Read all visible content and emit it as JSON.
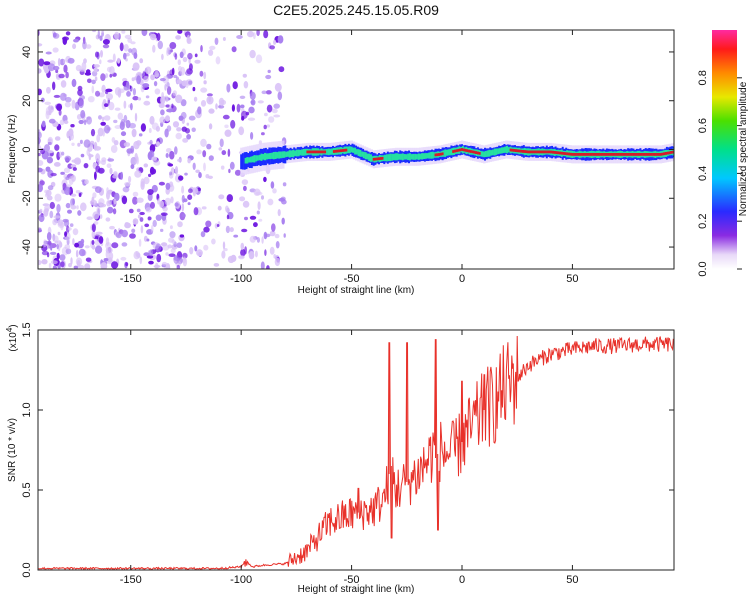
{
  "title": "C2E5.2025.245.15.05.R09",
  "colors": {
    "snr_line": "#e8312a",
    "ridge_core": "#d8192a",
    "ridge_mid": "#26e0a0",
    "ridge_outer": "#1a2bff",
    "noise_dark": "#6a12e0",
    "noise_light": "#d9c2f7"
  },
  "chart_data": [
    {
      "type": "heatmap",
      "name": "spectrogram",
      "xlabel": "Height of straight line (km)",
      "ylabel": "Frequency (Hz)",
      "xlim": [
        -192,
        96
      ],
      "ylim": [
        -49,
        49
      ],
      "xticks": [
        -150,
        -100,
        -50,
        0,
        50
      ],
      "xtick_labels": [
        "-150",
        "-100",
        "-50",
        "0",
        "50"
      ],
      "yticks": [
        -40,
        -20,
        0,
        20,
        40
      ],
      "ytick_labels": [
        "-40",
        "-20",
        "0",
        "20",
        "40"
      ],
      "ridge_x": [
        -100,
        -90,
        -80,
        -70,
        -60,
        -50,
        -40,
        -30,
        -20,
        -10,
        0,
        10,
        20,
        30,
        40,
        50,
        60,
        70,
        80,
        90,
        96
      ],
      "ridge_y": [
        -5,
        -3,
        -2,
        -1,
        -1,
        0,
        -4,
        -3,
        -3,
        -2,
        0,
        -2,
        0,
        -1,
        -1,
        -2,
        -2,
        -2,
        -2,
        -2,
        -1
      ],
      "noise_region": [
        -192,
        -80
      ],
      "colorbar": {
        "label": "Normalized spectral amplitude",
        "range": [
          0,
          1
        ],
        "ticks": [
          0.0,
          0.2,
          0.4,
          0.6,
          0.8
        ],
        "tick_labels": [
          "0.0",
          "0.2",
          "0.4",
          "0.6",
          "0.8"
        ]
      }
    },
    {
      "type": "line",
      "name": "snr",
      "xlabel": "Height of straight line (km)",
      "ylabel": "SNR (10 * v/v)",
      "multiplier_label": "(x10",
      "multiplier_exp": "4",
      "multiplier_close": ")",
      "xlim": [
        -192,
        96
      ],
      "ylim": [
        0,
        1.5
      ],
      "xticks": [
        -150,
        -100,
        -50,
        0,
        50
      ],
      "xtick_labels": [
        "-150",
        "-100",
        "-50",
        "0",
        "50"
      ],
      "yticks": [
        0.0,
        0.5,
        1.0,
        1.5
      ],
      "ytick_labels": [
        "0.0",
        "0.5",
        "1.0",
        "1.5"
      ],
      "x": [
        -192,
        -150,
        -110,
        -100,
        -98,
        -95,
        -90,
        -80,
        -70,
        -60,
        -50,
        -40,
        -35,
        -33,
        -32,
        -30,
        -25,
        -20,
        -15,
        -13,
        -12,
        -10,
        -5,
        0,
        5,
        10,
        15,
        20,
        25,
        30,
        40,
        50,
        60,
        70,
        80,
        90,
        96
      ],
      "mean": [
        0.01,
        0.01,
        0.01,
        0.02,
        0.06,
        0.02,
        0.03,
        0.04,
        0.12,
        0.3,
        0.35,
        0.38,
        0.45,
        0.6,
        0.65,
        0.5,
        0.55,
        0.6,
        0.7,
        0.75,
        0.7,
        0.75,
        0.72,
        0.8,
        0.9,
        1.0,
        1.05,
        1.15,
        1.2,
        1.28,
        1.35,
        1.38,
        1.4,
        1.4,
        1.41,
        1.41,
        1.41
      ],
      "spikes": [
        {
          "x": -33,
          "y": 1.42
        },
        {
          "x": -32,
          "y": 0.2
        },
        {
          "x": -25,
          "y": 1.42
        },
        {
          "x": -12,
          "y": 1.44
        },
        {
          "x": -11,
          "y": 0.25
        },
        {
          "x": -47,
          "y": 0.51
        },
        {
          "x": 0,
          "y": 1.18
        },
        {
          "x": 10,
          "y": 1.22
        }
      ]
    }
  ]
}
